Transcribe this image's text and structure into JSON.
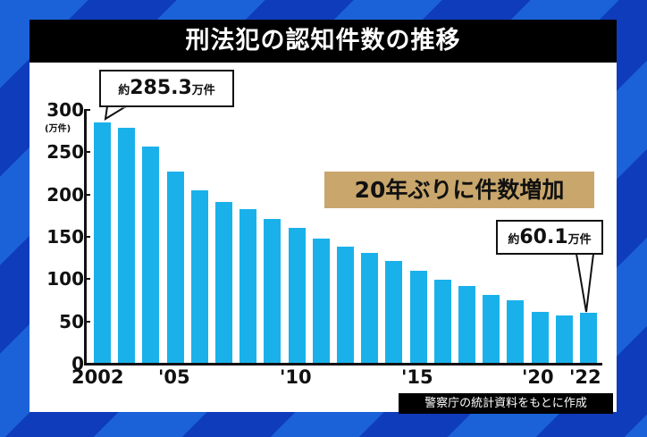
{
  "title": "刑法犯の認知件数の推移",
  "annotation": "20年ぶりに件数増加",
  "source": "警察庁の統計資料をもとに作成",
  "callouts": {
    "first": {
      "prefix": "約",
      "value": "285.3",
      "unit": "万件"
    },
    "last": {
      "prefix": "約",
      "value": "60.1",
      "unit": "万件"
    }
  },
  "y_unit_label": "(万件)",
  "y_ticks": [
    "300",
    "250",
    "200",
    "150",
    "100",
    "50",
    "0"
  ],
  "x_ticks": [
    "2002",
    "'05",
    "'10",
    "'15",
    "'20",
    "'22"
  ],
  "colors": {
    "bar": "#1ab1ea",
    "note_bg": "#c9a66b",
    "title_bg": "#000000",
    "bg_stripe_1": "#1b62d8",
    "bg_stripe_2": "#0f3cbb"
  },
  "chart_data": {
    "type": "bar",
    "title": "刑法犯の認知件数の推移",
    "xlabel": "",
    "ylabel": "万件",
    "ylim": [
      0,
      300
    ],
    "yticks": [
      0,
      50,
      100,
      150,
      200,
      250,
      300
    ],
    "categories": [
      "2002",
      "2003",
      "2004",
      "2005",
      "2006",
      "2007",
      "2008",
      "2009",
      "2010",
      "2011",
      "2012",
      "2013",
      "2014",
      "2015",
      "2016",
      "2017",
      "2018",
      "2019",
      "2020",
      "2021",
      "2022"
    ],
    "x_tick_labels": {
      "2002": "2002",
      "2005": "'05",
      "2010": "'10",
      "2015": "'15",
      "2020": "'20",
      "2022": "'22"
    },
    "values": [
      285.3,
      279.0,
      256.3,
      227.0,
      205.0,
      190.9,
      182.6,
      171.3,
      160.5,
      148.1,
      138.2,
      131.4,
      121.2,
      109.9,
      99.7,
      91.5,
      81.7,
      74.9,
      61.4,
      56.8,
      60.1
    ],
    "annotations": [
      "約285.3万件 (2002)",
      "約60.1万件 (2022)",
      "20年ぶりに件数増加"
    ],
    "grid": false,
    "legend": null
  }
}
